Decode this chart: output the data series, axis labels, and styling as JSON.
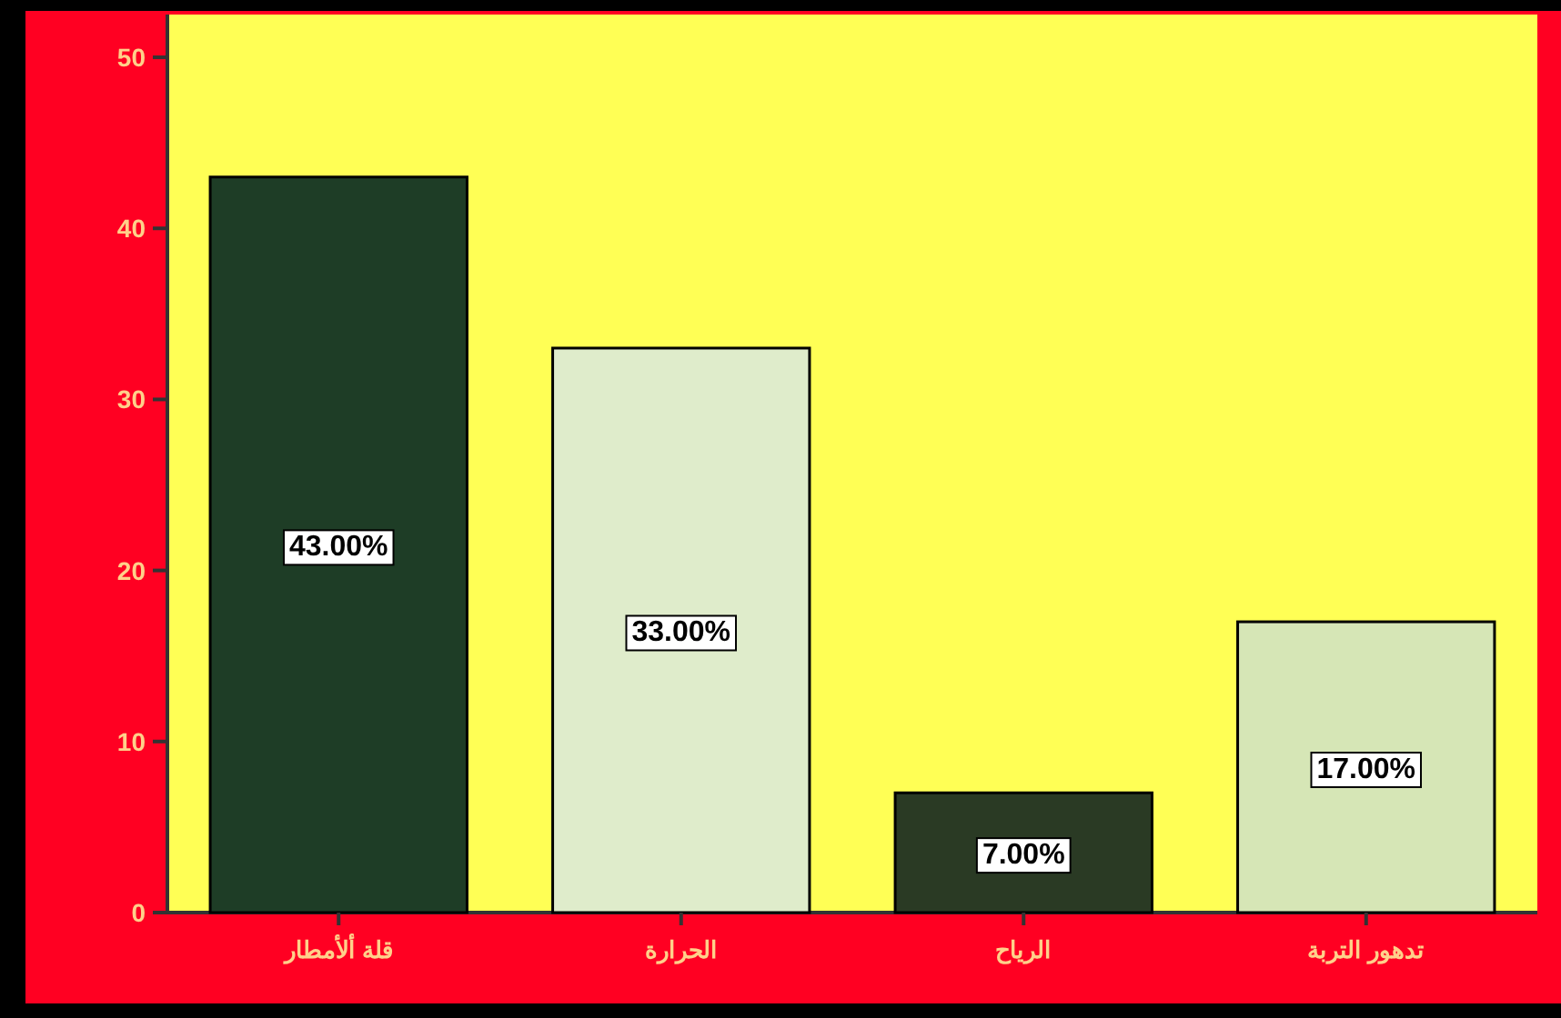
{
  "chart_data": {
    "type": "bar",
    "categories": [
      "قلة ألأمطار",
      "الحرارة",
      "الرياح",
      "تدهور التربة"
    ],
    "values": [
      43,
      33,
      7,
      17
    ],
    "value_labels": [
      "43.00%",
      "33.00%",
      "7.00%",
      "17.00%"
    ],
    "colors": [
      "#1e3d26",
      "#dfeccb",
      "#2a3a24",
      "#d6e6b6"
    ],
    "ylim": [
      0,
      52.5
    ],
    "yticks": [
      0,
      10,
      20,
      30,
      40,
      50
    ]
  }
}
